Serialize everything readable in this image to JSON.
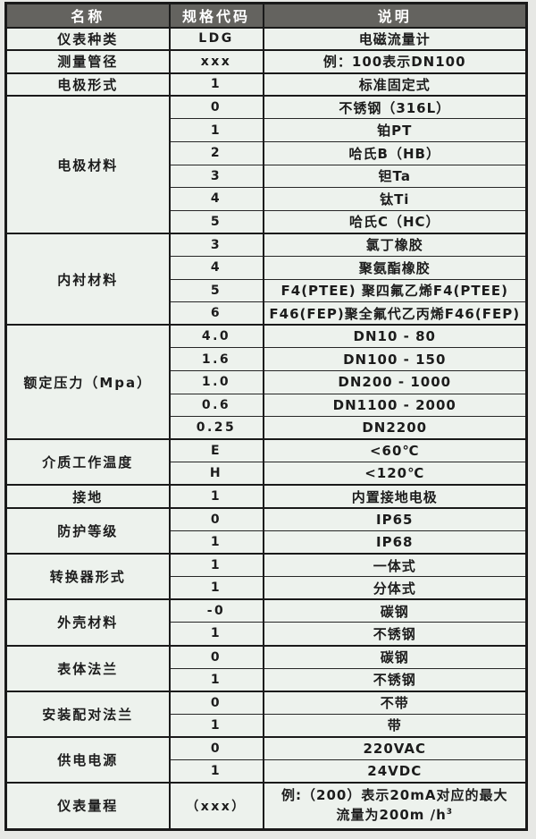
{
  "colors": {
    "header_bg": "#64635f",
    "header_text": "#ffffff",
    "body_bg": "#edf2ed",
    "border": "#1a1a1a",
    "text": "#1c1c1c",
    "page_bg": "#e7e8e5"
  },
  "table": {
    "headers": [
      "名称",
      "规格代码",
      "说明"
    ],
    "groups": [
      {
        "name": "仪表种类",
        "rows": [
          {
            "code": "LDG",
            "desc": "电磁流量计"
          }
        ]
      },
      {
        "name": "测量管径",
        "rows": [
          {
            "code": "xxx",
            "desc": "例：100表示DN100"
          }
        ]
      },
      {
        "name": "电极形式",
        "rows": [
          {
            "code": "1",
            "desc": "标准固定式"
          }
        ]
      },
      {
        "name": "电极材料",
        "rows": [
          {
            "code": "0",
            "desc": "不锈钢（316L）"
          },
          {
            "code": "1",
            "desc": "铂PT"
          },
          {
            "code": "2",
            "desc": "哈氏B（HB）"
          },
          {
            "code": "3",
            "desc": "钽Ta"
          },
          {
            "code": "4",
            "desc": "钛Ti"
          },
          {
            "code": "5",
            "desc": "哈氏C（HC）"
          }
        ]
      },
      {
        "name": "内衬材料",
        "rows": [
          {
            "code": "3",
            "desc": "氯丁橡胶"
          },
          {
            "code": "4",
            "desc": "聚氨酯橡胶"
          },
          {
            "code": "5",
            "desc": "F4(PTEE) 聚四氟乙烯F4(PTEE)"
          },
          {
            "code": "6",
            "desc": "F46(FEP)聚全氟代乙丙烯F46(FEP)"
          }
        ]
      },
      {
        "name": "额定压力（Mpa）",
        "rows": [
          {
            "code": "4.0",
            "desc": "DN10 - 80"
          },
          {
            "code": "1.6",
            "desc": "DN100 - 150"
          },
          {
            "code": "1.0",
            "desc": "DN200 - 1000"
          },
          {
            "code": "0.6",
            "desc": "DN1100 - 2000"
          },
          {
            "code": "0.25",
            "desc": "DN2200"
          }
        ]
      },
      {
        "name": "介质工作温度",
        "rows": [
          {
            "code": "E",
            "desc": "<60℃"
          },
          {
            "code": "H",
            "desc": "<120℃"
          }
        ]
      },
      {
        "name": "接地",
        "rows": [
          {
            "code": "1",
            "desc": "内置接地电极"
          }
        ]
      },
      {
        "name": "防护等级",
        "rows": [
          {
            "code": "0",
            "desc": "IP65"
          },
          {
            "code": "1",
            "desc": "IP68"
          }
        ]
      },
      {
        "name": "转换器形式",
        "rows": [
          {
            "code": "1",
            "desc": "一体式"
          },
          {
            "code": "1",
            "desc": "分体式"
          }
        ]
      },
      {
        "name": "外壳材料",
        "rows": [
          {
            "code": "-0",
            "desc": "碳钢"
          },
          {
            "code": "1",
            "desc": "不锈钢"
          }
        ]
      },
      {
        "name": "表体法兰",
        "rows": [
          {
            "code": "0",
            "desc": "碳钢"
          },
          {
            "code": "1",
            "desc": "不锈钢"
          }
        ]
      },
      {
        "name": "安装配对法兰",
        "rows": [
          {
            "code": "0",
            "desc": "不带"
          },
          {
            "code": "1",
            "desc": "带"
          }
        ]
      },
      {
        "name": "供电电源",
        "rows": [
          {
            "code": "0",
            "desc": "220VAC"
          },
          {
            "code": "1",
            "desc": "24VDC"
          }
        ]
      },
      {
        "name": "仪表量程",
        "rows": [
          {
            "code": "（xxx）",
            "desc_line1": "例:（200）表示20mA对应的最大",
            "desc_line2": "流量为200m /h",
            "desc_sup": "3",
            "tall": true
          }
        ]
      }
    ]
  }
}
